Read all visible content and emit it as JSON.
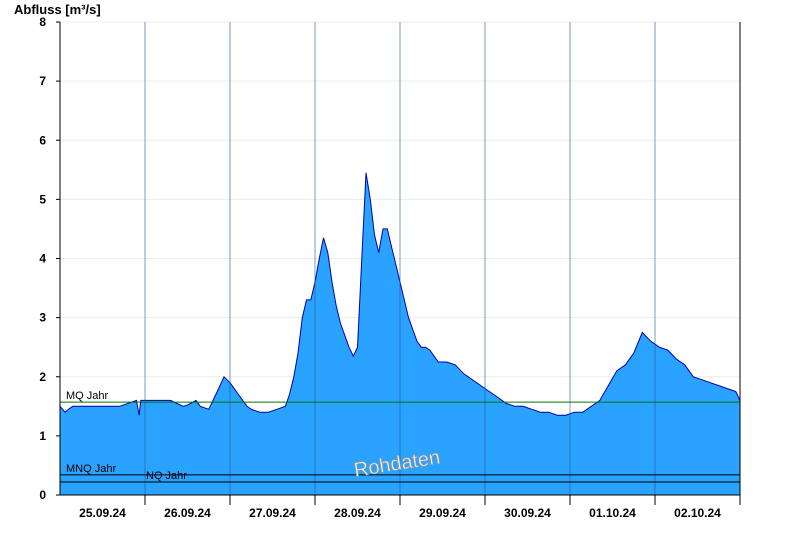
{
  "chart_data": {
    "type": "area",
    "title": "",
    "ylabel": "Abfluss [m³/s]",
    "xlabel": "",
    "ylim": [
      0,
      8
    ],
    "yticks": [
      "0",
      "1",
      "2",
      "3",
      "4",
      "5",
      "6",
      "7",
      "8"
    ],
    "xticks": [
      "25.09.24",
      "26.09.24",
      "27.09.24",
      "28.09.24",
      "29.09.24",
      "30.09.24",
      "01.10.24",
      "02.10.24"
    ],
    "x_unit": "days since 24.09.24 00:00",
    "grid": true,
    "fill_color": "#29a3ff",
    "line_color": "#0000aa",
    "watermark": "Rohdaten",
    "reference_lines": [
      {
        "name": "MQ Jahr",
        "value": 1.57,
        "color": "#007700"
      },
      {
        "name": "MNQ Jahr",
        "value": 0.34,
        "color": "#000000"
      },
      {
        "name": "NQ Jahr",
        "value": 0.22,
        "color": "#000000"
      }
    ],
    "series": [
      {
        "name": "",
        "x": [
          0.85,
          0.88,
          0.91,
          0.95,
          1.0,
          1.2,
          1.4,
          1.55,
          1.75,
          1.78,
          1.8,
          1.85,
          2.0,
          2.15,
          2.3,
          2.35,
          2.45,
          2.5,
          2.6,
          2.65,
          2.7,
          2.78,
          2.85,
          2.9,
          2.95,
          3.0,
          3.05,
          3.1,
          3.2,
          3.3,
          3.4,
          3.5,
          3.55,
          3.6,
          3.65,
          3.7,
          3.75,
          3.8,
          3.85,
          3.9,
          3.95,
          4.0,
          4.05,
          4.1,
          4.15,
          4.2,
          4.25,
          4.3,
          4.35,
          4.4,
          4.45,
          4.5,
          4.55,
          4.6,
          4.65,
          4.7,
          4.75,
          4.8,
          4.85,
          4.9,
          4.95,
          5.0,
          5.05,
          5.1,
          5.15,
          5.2,
          5.3,
          5.4,
          5.5,
          5.6,
          5.7,
          5.8,
          5.9,
          6.0,
          6.1,
          6.2,
          6.3,
          6.4,
          6.5,
          6.6,
          6.7,
          6.8,
          6.9,
          7.0,
          7.05,
          7.1,
          7.2,
          7.3,
          7.4,
          7.5,
          7.6,
          7.7,
          7.8,
          7.85,
          7.9,
          8.0,
          8.1,
          8.2,
          8.3,
          8.4,
          8.5,
          8.6,
          8.7,
          8.8,
          8.85,
          8.9,
          8.95
        ],
        "values": [
          1.5,
          1.45,
          1.4,
          1.45,
          1.5,
          1.5,
          1.5,
          1.5,
          1.6,
          1.35,
          1.6,
          1.6,
          1.6,
          1.6,
          1.5,
          1.52,
          1.6,
          1.5,
          1.45,
          1.6,
          1.75,
          2.0,
          1.9,
          1.8,
          1.7,
          1.6,
          1.5,
          1.45,
          1.4,
          1.4,
          1.45,
          1.5,
          1.7,
          2.0,
          2.4,
          3.0,
          3.3,
          3.3,
          3.6,
          4.0,
          4.35,
          4.1,
          3.6,
          3.2,
          2.9,
          2.7,
          2.5,
          2.35,
          2.5,
          4.0,
          5.45,
          5.0,
          4.4,
          4.1,
          4.5,
          4.5,
          4.2,
          3.9,
          3.6,
          3.3,
          3.0,
          2.8,
          2.6,
          2.5,
          2.5,
          2.45,
          2.25,
          2.25,
          2.2,
          2.05,
          1.95,
          1.85,
          1.75,
          1.65,
          1.55,
          1.5,
          1.5,
          1.45,
          1.4,
          1.4,
          1.35,
          1.35,
          1.4,
          1.4,
          1.45,
          1.5,
          1.6,
          1.85,
          2.1,
          2.2,
          2.4,
          2.75,
          2.6,
          2.55,
          2.5,
          2.45,
          2.3,
          2.2,
          2.0,
          1.95,
          1.9,
          1.85,
          1.8,
          1.75,
          1.6,
          1.55,
          1.5
        ]
      }
    ]
  }
}
